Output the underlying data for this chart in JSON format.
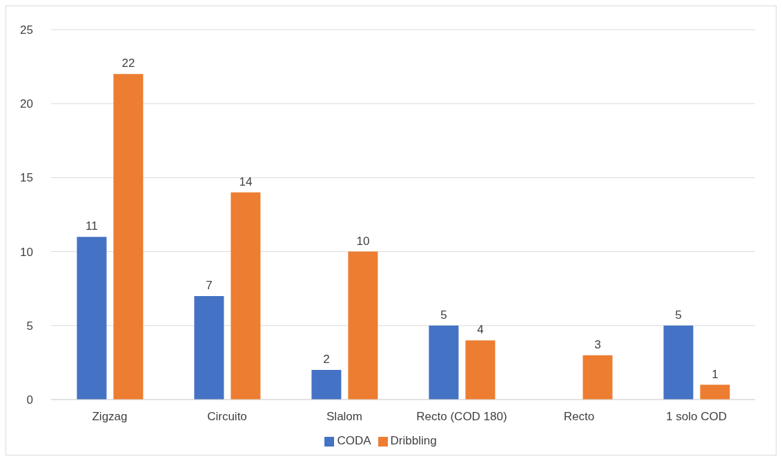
{
  "chart_data": {
    "type": "bar",
    "categories": [
      "Zigzag",
      "Circuito",
      "Slalom",
      "Recto (COD 180)",
      "Recto",
      "1 solo COD"
    ],
    "series": [
      {
        "name": "CODA",
        "color": "#4472c4",
        "values": [
          11,
          7,
          2,
          5,
          null,
          5
        ]
      },
      {
        "name": "Dribbling",
        "color": "#ed7d31",
        "values": [
          22,
          14,
          10,
          4,
          3,
          1
        ]
      }
    ],
    "ylim": [
      0,
      25
    ],
    "yticks": [
      0,
      5,
      10,
      15,
      20,
      25
    ],
    "grid": "y",
    "legend": "bottom",
    "data_labels": true
  }
}
